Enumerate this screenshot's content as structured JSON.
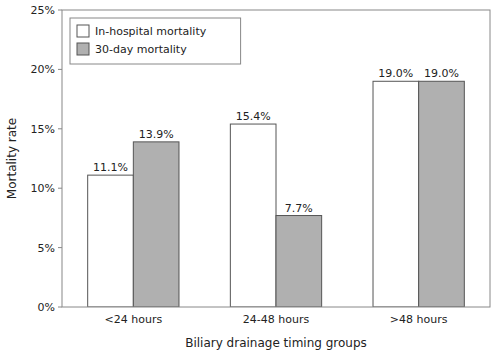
{
  "chart_data": {
    "type": "bar",
    "xlabel": "Biliary drainage timing groups",
    "ylabel": "Mortality rate",
    "categories": [
      "<24 hours",
      "24-48 hours",
      ">48 hours"
    ],
    "series": [
      {
        "name": "In-hospital mortality",
        "color": "#ffffff",
        "values": [
          11.1,
          15.4,
          19.0
        ],
        "value_labels": [
          "11.1%",
          "15.4%",
          "19.0%"
        ]
      },
      {
        "name": "30-day mortality",
        "color": "#b0b0b0",
        "values": [
          13.9,
          7.7,
          19.0
        ],
        "value_labels": [
          "13.9%",
          "7.7%",
          "19.0%"
        ]
      }
    ],
    "ylim": [
      0,
      25
    ],
    "yticks": [
      {
        "value": 0,
        "label": "0%"
      },
      {
        "value": 5,
        "label": "5%"
      },
      {
        "value": 10,
        "label": "10%"
      },
      {
        "value": 15,
        "label": "15%"
      },
      {
        "value": 20,
        "label": "20%"
      },
      {
        "value": 25,
        "label": "25%"
      }
    ],
    "grid": false,
    "legend": "upper left",
    "data_labels": true
  }
}
